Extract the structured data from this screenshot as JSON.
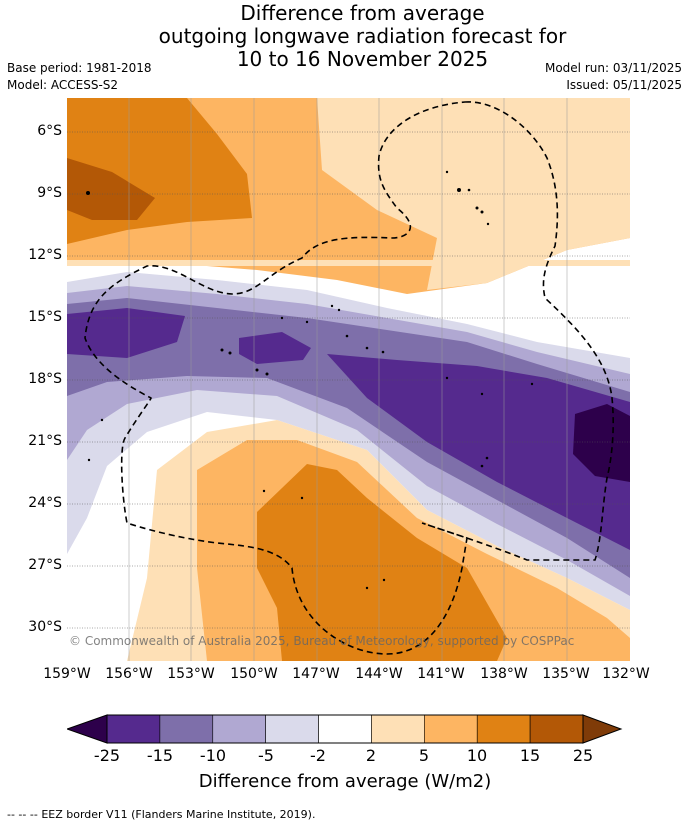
{
  "title": {
    "line1": "Difference from average",
    "line2": "outgoing longwave radiation forecast for",
    "line3": "10 to 16 November 2025"
  },
  "meta": {
    "base_period": "Base period: 1981-2018",
    "model": "Model: ACCESS-S2",
    "model_run": "Model run: 03/11/2025",
    "issued": "Issued: 05/11/2025"
  },
  "axes": {
    "lat_labels": [
      "6°S",
      "9°S",
      "12°S",
      "15°S",
      "18°S",
      "21°S",
      "24°S",
      "27°S",
      "30°S"
    ],
    "lon_labels": [
      "159°W",
      "156°W",
      "153°W",
      "150°W",
      "147°W",
      "144°W",
      "141°W",
      "138°W",
      "135°W",
      "132°W"
    ]
  },
  "copyright": "© Commonwealth of Australia 2025, Bureau of Meteorology, supported by COSPPac",
  "colorbar": {
    "ticks": [
      "-25",
      "-15",
      "-10",
      "-5",
      "-2",
      "2",
      "5",
      "10",
      "15",
      "25"
    ],
    "colors": [
      "#552a8e",
      "#7e6faa",
      "#b0a8d2",
      "#dadaeb",
      "#ffffff",
      "#fee0b6",
      "#fdb562",
      "#e08214",
      "#b35806"
    ],
    "under_color": "#2d004b",
    "over_color": "#7f3b08",
    "label": "Difference from average (W/m2)"
  },
  "legend": {
    "eez_marker": "--  --  --",
    "eez_text": "EEZ border V11 (Flanders Marine Institute, 2019)."
  }
}
